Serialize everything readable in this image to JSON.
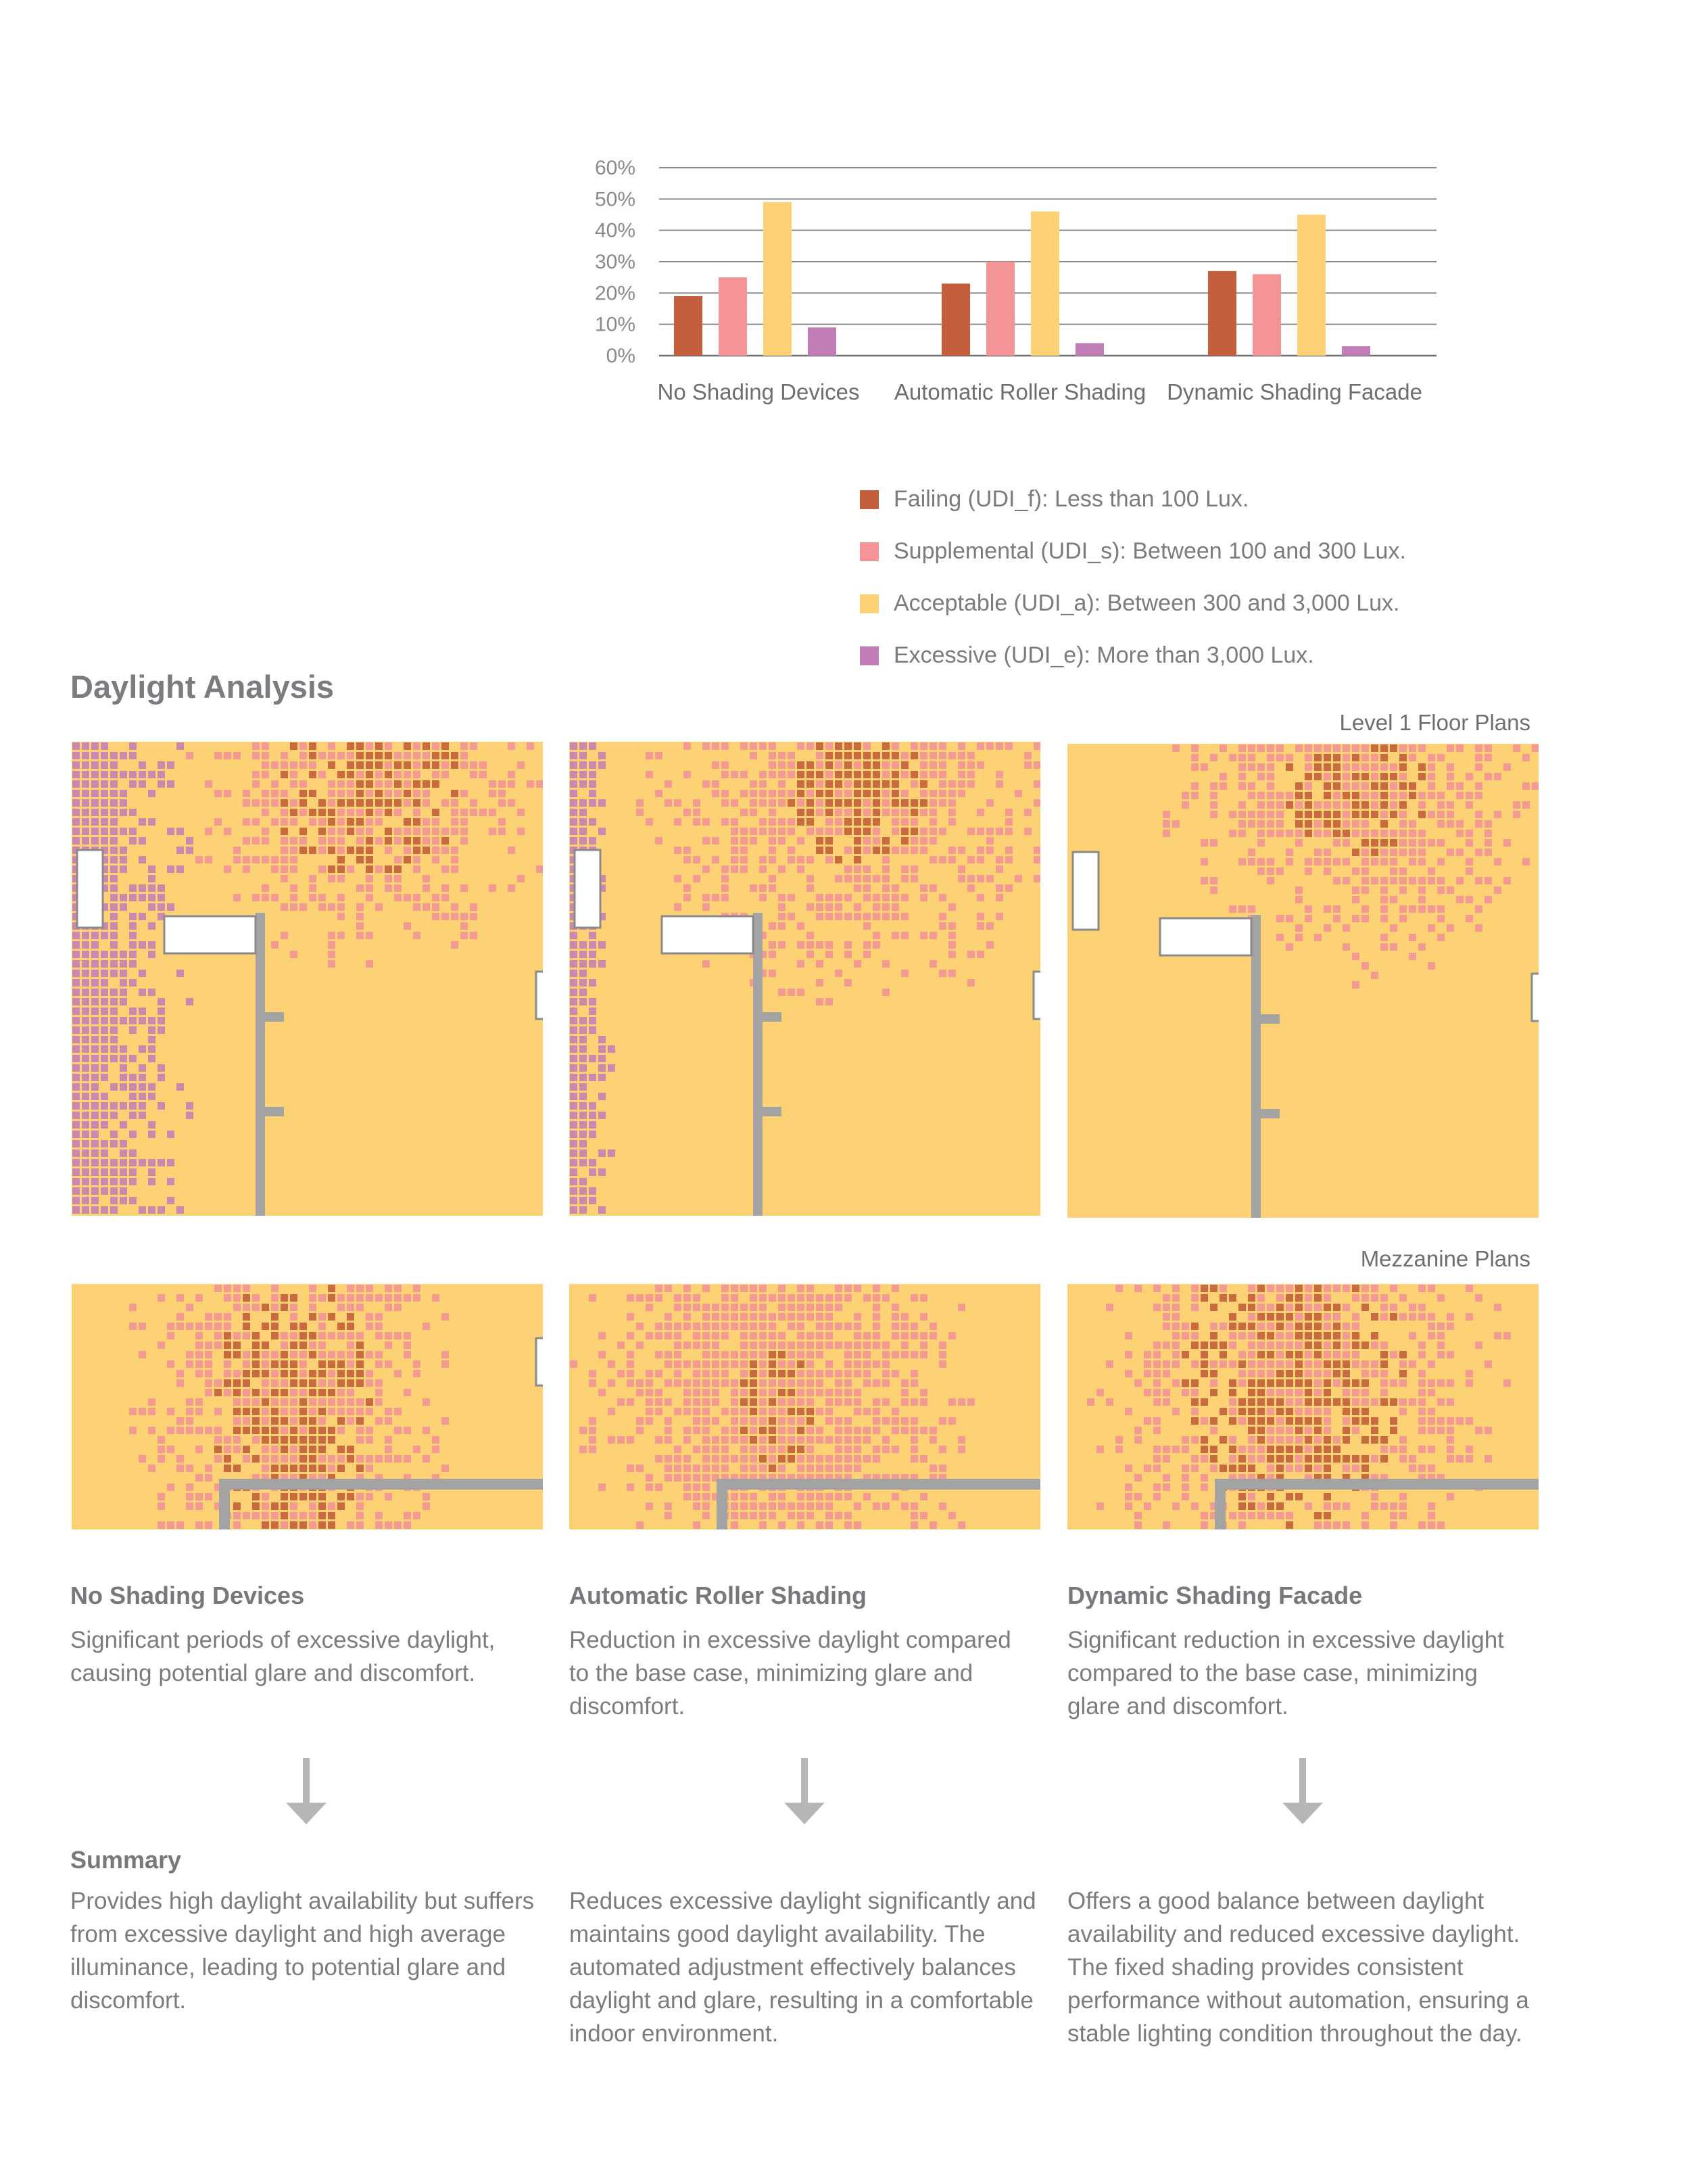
{
  "colors": {
    "failing": "#c45e3c",
    "supplemental": "#f49497",
    "acceptable": "#fdd274",
    "excessive": "#c17db7",
    "wall": "#a3a3a3",
    "arrow": "#b6b6b8"
  },
  "chart_data": {
    "type": "bar",
    "categories": [
      "No Shading Devices",
      "Automatic Roller Shading",
      "Dynamic Shading Facade"
    ],
    "series": [
      {
        "name": "Failing (UDI_f): Less than 100 Lux.",
        "values": [
          19,
          23,
          27
        ]
      },
      {
        "name": "Supplemental (UDI_s): Between 100 and 300 Lux.",
        "values": [
          25,
          30,
          26
        ]
      },
      {
        "name": "Acceptable (UDI_a): Between 300 and 3,000 Lux.",
        "values": [
          49,
          46,
          45
        ]
      },
      {
        "name": "Excessive (UDI_e): More than 3,000 Lux.",
        "values": [
          9,
          4,
          3
        ]
      }
    ],
    "y_ticks": [
      "60%",
      "50%",
      "40%",
      "30%",
      "20%",
      "10%",
      "0%"
    ],
    "ylim": [
      0,
      60
    ],
    "grid": true,
    "legend_placement": "bottom-right"
  },
  "legend": [
    {
      "label": "Failing (UDI_f): Less than 100 Lux.",
      "color": "#c45e3c"
    },
    {
      "label": "Supplemental (UDI_s): Between 100 and 300 Lux.",
      "color": "#f49497"
    },
    {
      "label": "Acceptable (UDI_a): Between 300 and 3,000 Lux.",
      "color": "#fdd274"
    },
    {
      "label": "Excessive (UDI_e): More than 3,000 Lux.",
      "color": "#c17db7"
    }
  ],
  "section_title": "Daylight Analysis",
  "level1_label": "Level 1 Floor Plans",
  "mezzanine_label": "Mezzanine Plans",
  "columns": [
    {
      "heading": "No Shading Devices",
      "description": "Significant periods of excessive daylight, causing potential glare and discomfort.",
      "summary": "Provides high daylight availability but suffers from excessive daylight and high average illuminance, leading to potential glare and discomfort."
    },
    {
      "heading": "Automatic Roller Shading",
      "description": "Reduction in excessive daylight compared to the base case, minimizing glare and discomfort.",
      "summary": "Reduces excessive daylight significantly and maintains good daylight availability. The automated adjustment effectively balances daylight and glare, resulting in a comfortable indoor environment."
    },
    {
      "heading": "Dynamic Shading Facade",
      "description": "Significant reduction in excessive daylight compared to the base case, minimizing glare and discomfort.",
      "summary": "Offers a good balance between daylight availability and reduced excessive daylight. The fixed shading provides consistent performance without automation, ensuring a stable lighting condition throughout the day."
    }
  ],
  "summary_heading": "Summary"
}
